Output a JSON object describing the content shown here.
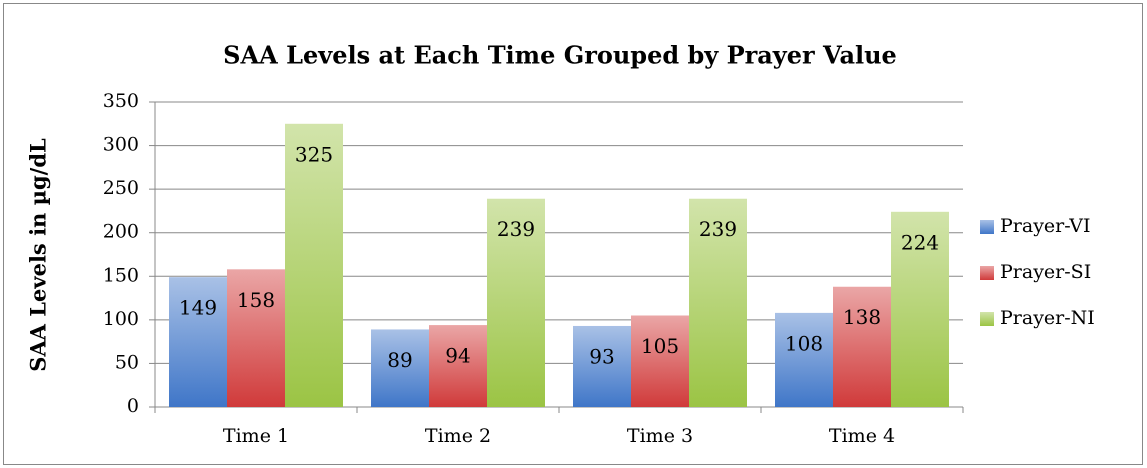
{
  "chart_data": {
    "type": "bar",
    "title": "SAA Levels at Each Time Grouped by Prayer Value",
    "y_axis_label": "SAA Levels in µg/dL",
    "categories": [
      "Time 1",
      "Time 2",
      "Time 3",
      "Time 4"
    ],
    "series": [
      {
        "name": "Prayer-VI",
        "color": "#3f76c8",
        "values": [
          149,
          89,
          93,
          108
        ]
      },
      {
        "name": "Prayer-SI",
        "color": "#d03a3a",
        "values": [
          158,
          94,
          105,
          138
        ]
      },
      {
        "name": "Prayer-NI",
        "color": "#9bc444",
        "values": [
          325,
          239,
          239,
          224
        ]
      }
    ],
    "ylim": [
      0,
      350
    ],
    "yticks": [
      0,
      50,
      100,
      150,
      200,
      250,
      300,
      350
    ],
    "grid": true,
    "legend": "right",
    "data_labels": true
  }
}
